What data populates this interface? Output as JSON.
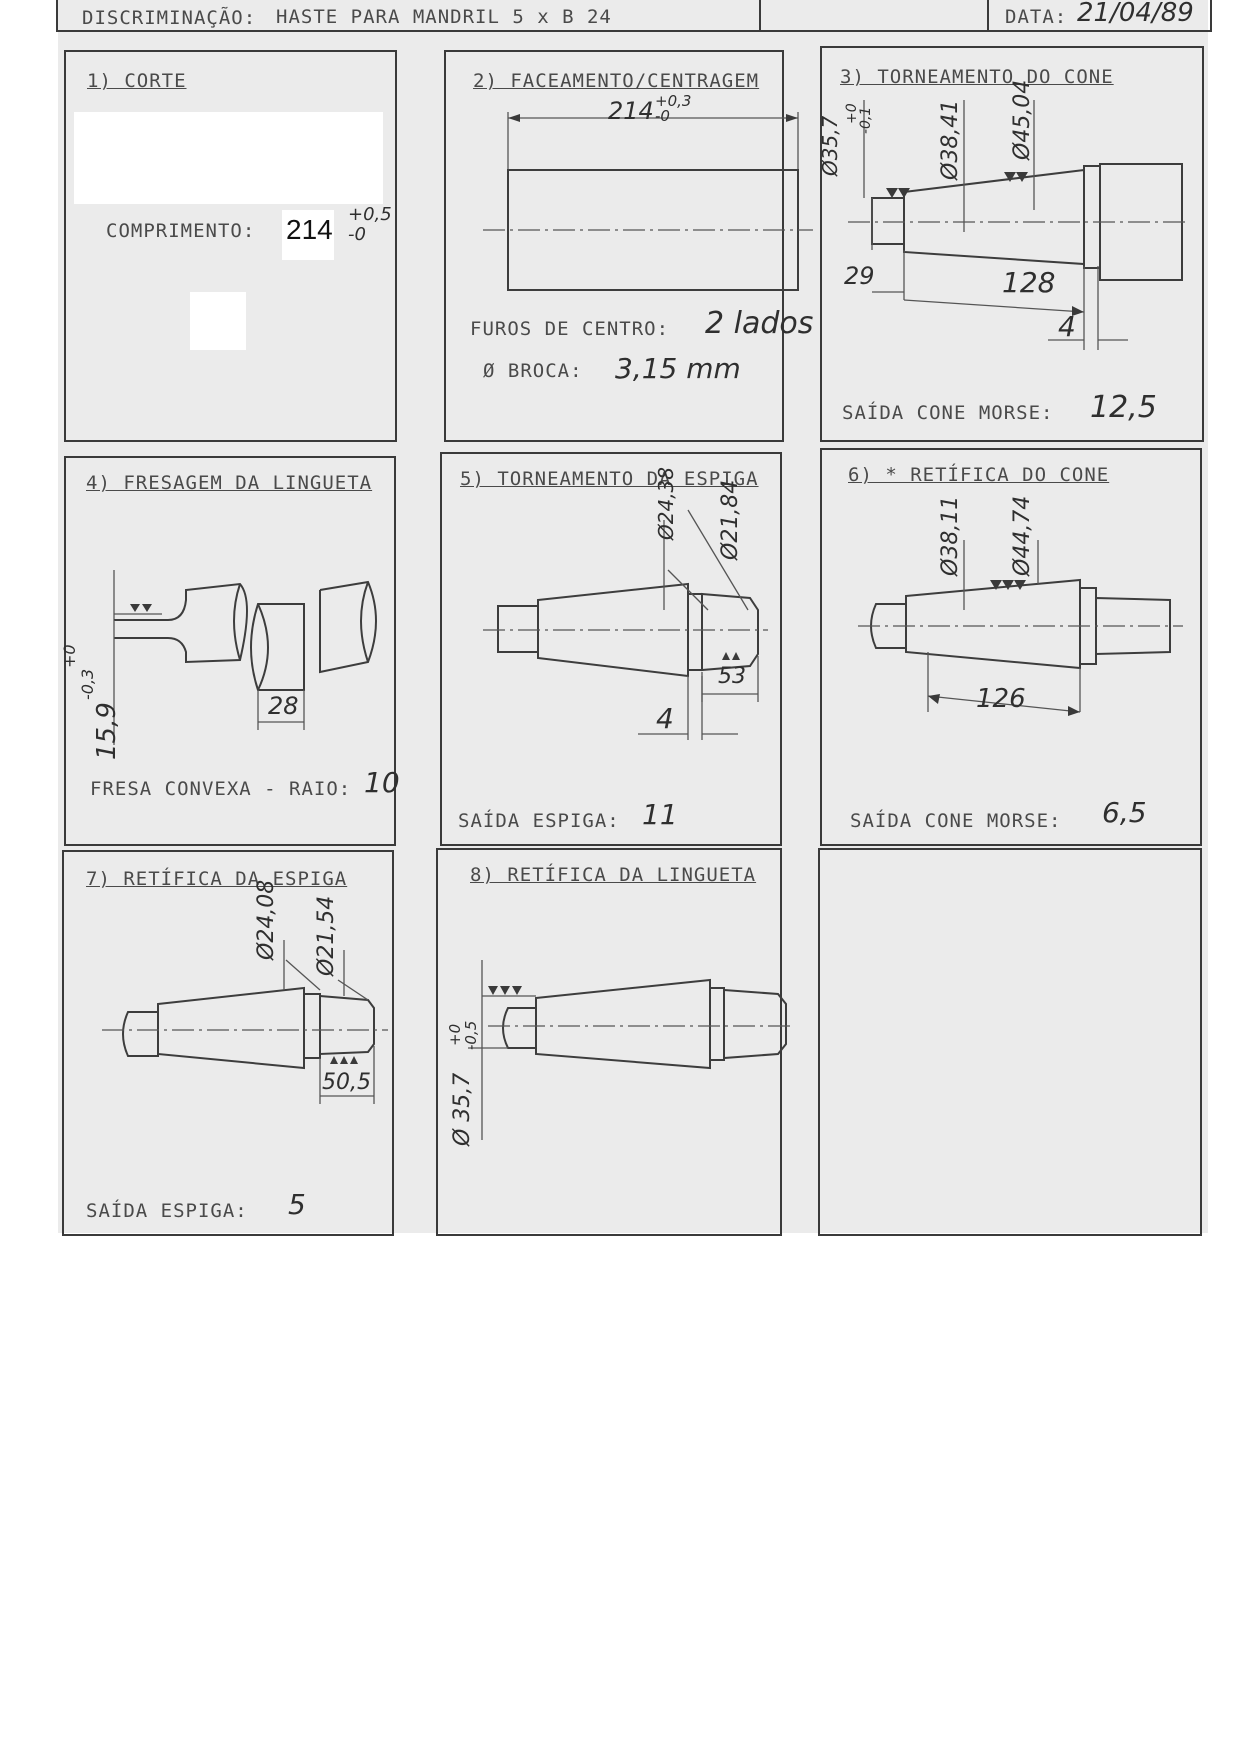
{
  "header": {
    "discriminacao_label": "DISCRIMINAÇÃO:",
    "discriminacao_value": "HASTE PARA MANDRIL 5 x B 24",
    "data_label": "DATA:",
    "data_value": "21/04/89"
  },
  "steps": [
    {
      "title": "1) CORTE",
      "fields": [
        {
          "label": "COMPRIMENTO:",
          "value": "214",
          "tol_upper": "+0,5",
          "tol_lower": "-0"
        }
      ]
    },
    {
      "title": "2) FACEAMENTO/CENTRAGEM",
      "dims": [
        "214",
        "+0,3",
        "-0"
      ],
      "fields": [
        {
          "label": "FUROS DE CENTRO:",
          "value": "2 lados"
        },
        {
          "label": "Ø BROCA:",
          "value": "3,15 mm"
        }
      ]
    },
    {
      "title": "3) TORNEAMENTO DO CONE",
      "dims": [
        "Ø35,7",
        "+0",
        "-0,1",
        "Ø38,41",
        "Ø45,04",
        "29",
        "128",
        "4"
      ],
      "fields": [
        {
          "label": "SAÍDA CONE MORSE:",
          "value": "12,5"
        }
      ]
    },
    {
      "title": "4) FRESAGEM DA LINGUETA",
      "dims": [
        "15,9",
        "+0",
        "-0,3",
        "28"
      ],
      "fields": [
        {
          "label": "FRESA CONVEXA - RAIO:",
          "value": "10"
        }
      ]
    },
    {
      "title": "5) TORNEAMENTO DA ESPIGA",
      "dims": [
        "Ø24,38",
        "Ø21,84",
        "53",
        "4"
      ],
      "fields": [
        {
          "label": "SAÍDA ESPIGA:",
          "value": "11"
        }
      ]
    },
    {
      "title": "6) * RETÍFICA DO CONE",
      "dims": [
        "Ø38,11",
        "Ø44,74",
        "126"
      ],
      "fields": [
        {
          "label": "SAÍDA CONE MORSE:",
          "value": "6,5"
        }
      ]
    },
    {
      "title": "7) RETÍFICA DA ESPIGA",
      "dims": [
        "Ø24,08",
        "Ø21,54",
        "50,5"
      ],
      "fields": [
        {
          "label": "SAÍDA ESPIGA:",
          "value": "5"
        }
      ]
    },
    {
      "title": "8) RETÍFICA DA LINGUETA",
      "dims": [
        "Ø 35,7",
        "+0",
        "-0,5"
      ],
      "fields": []
    }
  ]
}
